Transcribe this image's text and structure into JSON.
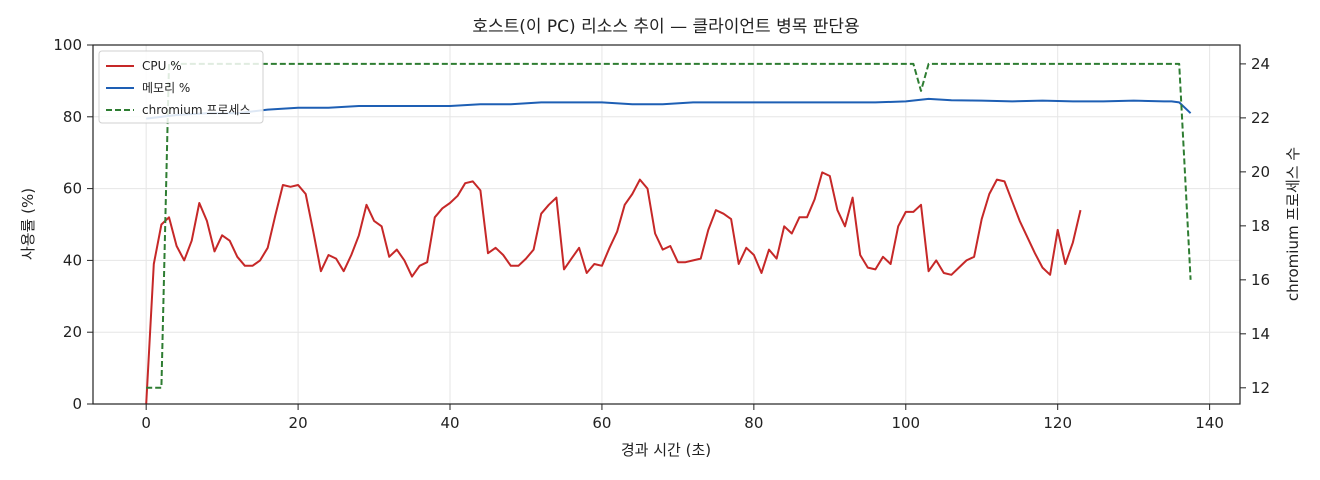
{
  "chart_data": {
    "type": "line",
    "title": "호스트(이 PC) 리소스 추이 — 클라이언트 병목 판단용",
    "xlabel": "경과 시간 (초)",
    "ylabel": "사용률 (%)",
    "y2label": "chromium 프로세스 수",
    "xlim": [
      -7,
      144
    ],
    "ylim": [
      0,
      100
    ],
    "y2lim": [
      11.4,
      24.7
    ],
    "x_ticks": [
      0,
      20,
      40,
      60,
      80,
      100,
      120,
      140
    ],
    "y_ticks": [
      0,
      20,
      40,
      60,
      80,
      100
    ],
    "y2_ticks": [
      12,
      14,
      16,
      18,
      20,
      22,
      24
    ],
    "grid": true,
    "legend_position": "top-left",
    "series": [
      {
        "name": "CPU %",
        "axis": "left",
        "color": "#c62828",
        "style": "solid",
        "points": [
          [
            0,
            0
          ],
          [
            1,
            39
          ],
          [
            2,
            50
          ],
          [
            3,
            52
          ],
          [
            4,
            44
          ],
          [
            5,
            40
          ],
          [
            6,
            45.5
          ],
          [
            7,
            56
          ],
          [
            8,
            51
          ],
          [
            9,
            42.5
          ],
          [
            10,
            47
          ],
          [
            11,
            45.5
          ],
          [
            12,
            41
          ],
          [
            13,
            38.5
          ],
          [
            14,
            38.5
          ],
          [
            15,
            40
          ],
          [
            16,
            43.5
          ],
          [
            17,
            52.5
          ],
          [
            18,
            61
          ],
          [
            19,
            60.5
          ],
          [
            20,
            61
          ],
          [
            21,
            58.5
          ],
          [
            22,
            48
          ],
          [
            23,
            37
          ],
          [
            24,
            41.5
          ],
          [
            25,
            40.5
          ],
          [
            26,
            37
          ],
          [
            27,
            41.5
          ],
          [
            28,
            47
          ],
          [
            29,
            55.5
          ],
          [
            30,
            51
          ],
          [
            31,
            49.5
          ],
          [
            32,
            41
          ],
          [
            33,
            43
          ],
          [
            34,
            40
          ],
          [
            35,
            35.5
          ],
          [
            36,
            38.5
          ],
          [
            37,
            39.5
          ],
          [
            38,
            52
          ],
          [
            39,
            54.5
          ],
          [
            40,
            56
          ],
          [
            41,
            58
          ],
          [
            42,
            61.5
          ],
          [
            43,
            62
          ],
          [
            44,
            59.5
          ],
          [
            45,
            42
          ],
          [
            46,
            43.5
          ],
          [
            47,
            41.5
          ],
          [
            48,
            38.5
          ],
          [
            49,
            38.5
          ],
          [
            50,
            40.5
          ],
          [
            51,
            43
          ],
          [
            52,
            53
          ],
          [
            53,
            55.5
          ],
          [
            54,
            57.5
          ],
          [
            55,
            37.5
          ],
          [
            56,
            40.5
          ],
          [
            57,
            43.5
          ],
          [
            58,
            36.5
          ],
          [
            59,
            39
          ],
          [
            60,
            38.5
          ],
          [
            61,
            43.5
          ],
          [
            62,
            48
          ],
          [
            63,
            55.5
          ],
          [
            64,
            58.5
          ],
          [
            65,
            62.5
          ],
          [
            66,
            60
          ],
          [
            67,
            47.5
          ],
          [
            68,
            43
          ],
          [
            69,
            44
          ],
          [
            70,
            39.5
          ],
          [
            71,
            39.5
          ],
          [
            72,
            40
          ],
          [
            73,
            40.5
          ],
          [
            74,
            48.5
          ],
          [
            75,
            54
          ],
          [
            76,
            53
          ],
          [
            77,
            51.5
          ],
          [
            78,
            39
          ],
          [
            79,
            43.5
          ],
          [
            80,
            41.5
          ],
          [
            81,
            36.5
          ],
          [
            82,
            43
          ],
          [
            83,
            40.5
          ],
          [
            84,
            49.5
          ],
          [
            85,
            47.5
          ],
          [
            86,
            52
          ],
          [
            87,
            52
          ],
          [
            88,
            57
          ],
          [
            89,
            64.5
          ],
          [
            90,
            63.5
          ],
          [
            91,
            54
          ],
          [
            92,
            49.5
          ],
          [
            93,
            57.5
          ],
          [
            94,
            41.5
          ],
          [
            95,
            38
          ],
          [
            96,
            37.5
          ],
          [
            97,
            41
          ],
          [
            98,
            39
          ],
          [
            99,
            49.5
          ],
          [
            100,
            53.5
          ],
          [
            101,
            53.5
          ],
          [
            102,
            55.5
          ],
          [
            103,
            37
          ],
          [
            104,
            40
          ],
          [
            105,
            36.5
          ],
          [
            106,
            36
          ],
          [
            107,
            38
          ],
          [
            108,
            40
          ],
          [
            109,
            41
          ],
          [
            110,
            51.5
          ],
          [
            111,
            58.5
          ],
          [
            112,
            62.5
          ],
          [
            113,
            62
          ],
          [
            114,
            56.5
          ],
          [
            115,
            51
          ],
          [
            116,
            46.5
          ],
          [
            117,
            42
          ],
          [
            118,
            38
          ],
          [
            119,
            36
          ],
          [
            120,
            48.5
          ],
          [
            121,
            39
          ],
          [
            122,
            45
          ],
          [
            123,
            54
          ]
        ]
      },
      {
        "name": "메모리 %",
        "axis": "left",
        "color": "#1e5fb4",
        "style": "solid",
        "points": [
          [
            0,
            79.5
          ],
          [
            4,
            80.5
          ],
          [
            8,
            81
          ],
          [
            12,
            81
          ],
          [
            16,
            82
          ],
          [
            20,
            82.5
          ],
          [
            24,
            82.5
          ],
          [
            28,
            83
          ],
          [
            32,
            83
          ],
          [
            36,
            83
          ],
          [
            40,
            83
          ],
          [
            44,
            83.5
          ],
          [
            48,
            83.5
          ],
          [
            52,
            84
          ],
          [
            56,
            84
          ],
          [
            60,
            84
          ],
          [
            64,
            83.5
          ],
          [
            68,
            83.5
          ],
          [
            72,
            84
          ],
          [
            76,
            84
          ],
          [
            80,
            84
          ],
          [
            84,
            84
          ],
          [
            88,
            84
          ],
          [
            92,
            84
          ],
          [
            96,
            84
          ],
          [
            100,
            84.3
          ],
          [
            103,
            85
          ],
          [
            106,
            84.6
          ],
          [
            110,
            84.5
          ],
          [
            114,
            84.3
          ],
          [
            118,
            84.5
          ],
          [
            122,
            84.3
          ],
          [
            126,
            84.3
          ],
          [
            130,
            84.5
          ],
          [
            134,
            84.3
          ],
          [
            135,
            84.3
          ],
          [
            136,
            84
          ],
          [
            137.5,
            81
          ]
        ]
      },
      {
        "name": "chromium 프로세스",
        "axis": "right",
        "color": "#2e7d32",
        "style": "dashed",
        "points": [
          [
            0,
            12
          ],
          [
            2,
            12
          ],
          [
            3,
            24
          ],
          [
            101,
            24
          ],
          [
            102,
            23
          ],
          [
            103,
            24
          ],
          [
            136,
            24
          ],
          [
            137.5,
            16
          ]
        ]
      }
    ]
  }
}
